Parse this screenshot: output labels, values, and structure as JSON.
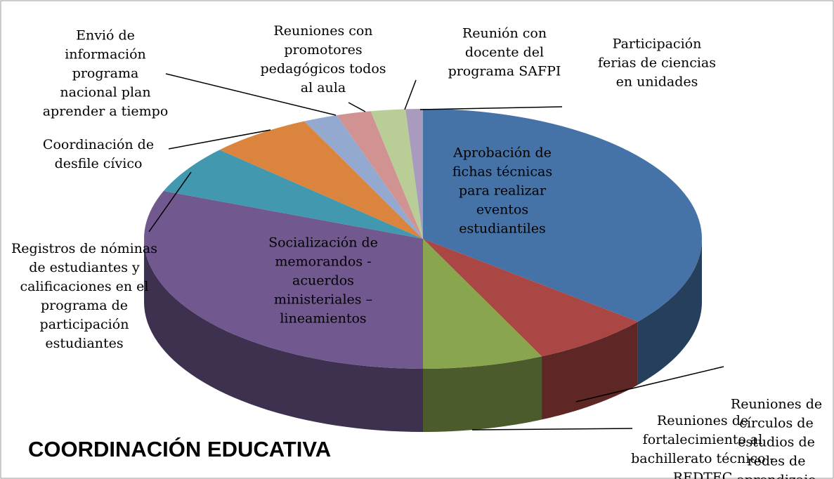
{
  "chart_data": {
    "type": "pie",
    "title": "COORDINACIÓN EDUCATIVA",
    "categories": [
      "Aprobación de fichas técnicas para realizar eventos estudiantiles",
      "Reuniones de círculos de estudios de redes de aprendizaje",
      "Reuniones de fortalecimiento al bachillerato técnico - REDTEC",
      "Socialización de memorandos - acuerdos ministeriales – lineamientos",
      "Registros de nóminas de estudiantes y calificaciones en el programa de participación estudiantes",
      "Coordinación de desfile cívico",
      "Envió de información programa nacional plan aprender a tiempo",
      "Reuniones con promotores pedagógicos todos al aula",
      "Reunión con docente del programa SAFPI",
      "Participación ferias de ciencias en unidades"
    ],
    "values": [
      36,
      7,
      7,
      31,
      6,
      6,
      2,
      2,
      2,
      1
    ],
    "colors": [
      "#4572a7",
      "#aa4643",
      "#89a54e",
      "#71588f",
      "#4198af",
      "#db843d",
      "#93a9cf",
      "#d19392",
      "#b9cd96",
      "#a99bbd"
    ]
  }
}
